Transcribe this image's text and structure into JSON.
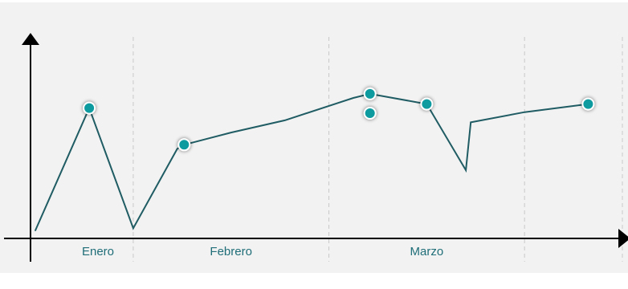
{
  "chart_data": {
    "type": "line",
    "categories": [
      "Enero",
      "Febrero",
      "Marzo"
    ],
    "x": [
      0,
      0.55,
      1.0,
      1.45,
      1.52,
      2.0,
      2.55,
      3.25,
      3.42,
      4.0,
      4.4,
      4.45,
      5.0,
      5.65
    ],
    "series": [
      {
        "values": [
          0.4,
          6.4,
          0.5,
          4.4,
          4.6,
          5.2,
          5.8,
          6.9,
          7.1,
          6.6,
          3.35,
          5.7,
          6.2,
          6.6
        ],
        "marker_indices": [
          1,
          4,
          8,
          9,
          13
        ]
      }
    ],
    "extra_points": [
      {
        "x": 3.42,
        "y": 6.15
      }
    ],
    "xlim": [
      -0.05,
      6.0
    ],
    "ylim": [
      0,
      9.5
    ],
    "category_bounds": [
      0,
      1.0,
      3.0,
      5.0,
      6.0
    ],
    "grid": false,
    "title": "",
    "xlabel": "",
    "ylabel": "",
    "colors": {
      "background": "#f2f2f2",
      "line": "#1f5c63",
      "marker": "#0e9ba0",
      "text": "#1f6e78"
    }
  }
}
